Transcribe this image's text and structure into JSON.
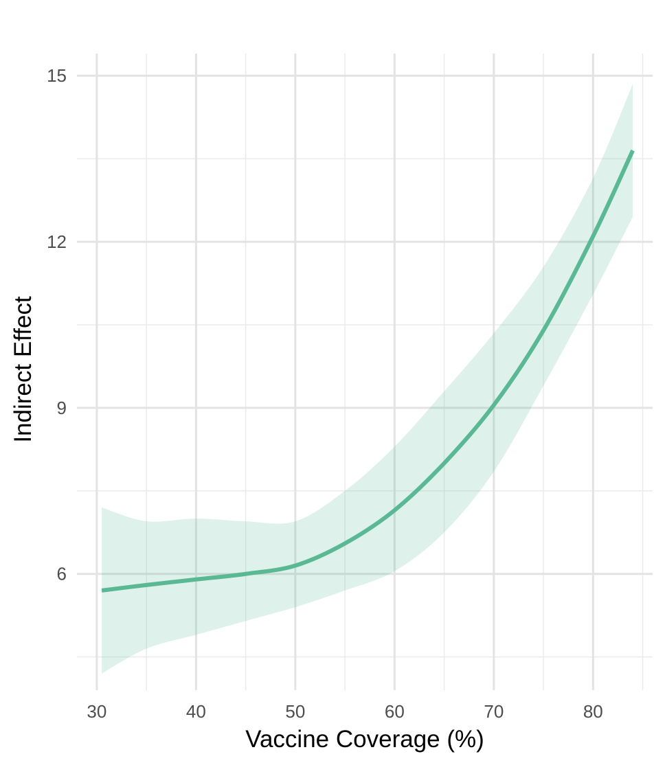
{
  "chart_data": {
    "type": "line",
    "title": "",
    "xlabel": "Vaccine Coverage (%)",
    "ylabel": "Indirect Effect",
    "xlim": [
      28,
      86
    ],
    "ylim": [
      3.9,
      15.4
    ],
    "x_ticks": [
      30,
      40,
      50,
      60,
      70,
      80
    ],
    "x_tick_labels": [
      "30",
      "40",
      "50",
      "60",
      "70",
      "80"
    ],
    "y_ticks": [
      6,
      9,
      12,
      15
    ],
    "y_tick_labels": [
      "6",
      "9",
      "12",
      "15"
    ],
    "x_minor_ticks": [
      35,
      45,
      55,
      65,
      75,
      85
    ],
    "y_minor_ticks": [
      4.5,
      7.5,
      10.5,
      13.5
    ],
    "grid": true,
    "legend": "none",
    "colors": {
      "line": "#5ab994",
      "band": "#5ab994"
    },
    "series": [
      {
        "x": [
          30.5,
          35,
          40,
          45,
          50,
          55,
          60,
          65,
          70,
          75,
          80,
          84
        ],
        "y": [
          5.7,
          5.8,
          5.9,
          6.0,
          6.15,
          6.55,
          7.15,
          8.0,
          9.05,
          10.4,
          12.1,
          13.65
        ],
        "lower": [
          4.2,
          4.65,
          4.9,
          5.15,
          5.4,
          5.7,
          6.05,
          6.75,
          7.85,
          9.4,
          11.05,
          12.45
        ],
        "upper": [
          7.2,
          6.95,
          7.0,
          6.95,
          6.95,
          7.5,
          8.3,
          9.3,
          10.35,
          11.55,
          13.15,
          14.85
        ]
      }
    ]
  }
}
